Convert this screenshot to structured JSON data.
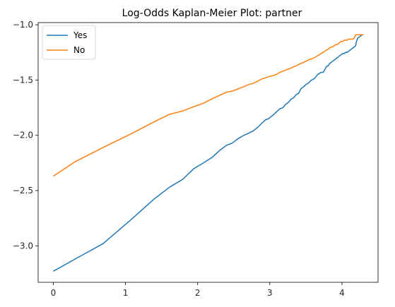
{
  "chart_data": {
    "type": "line",
    "title": "Log-Odds Kaplan-Meier Plot: partner",
    "xlabel": "",
    "ylabel": "",
    "xlim": [
      -0.21,
      4.5
    ],
    "ylim": [
      -3.33,
      -0.98
    ],
    "xticks": [
      0,
      1,
      2,
      3,
      4
    ],
    "yticks": [
      -3.0,
      -2.5,
      -2.0,
      -1.5,
      -1.0
    ],
    "xtick_labels": [
      "0",
      "1",
      "2",
      "3",
      "4"
    ],
    "ytick_labels": [
      "−3.0",
      "−2.5",
      "−2.0",
      "−1.5",
      "−1.0"
    ],
    "grid": false,
    "legend": {
      "placement": "top-left"
    },
    "series": [
      {
        "name": "Yes",
        "color": "#1f77b4",
        "x": [
          0,
          0.3,
          0.69,
          1.1,
          1.39,
          1.61,
          1.79,
          1.95,
          2.08,
          2.2,
          2.3,
          2.4,
          2.48,
          2.56,
          2.64,
          2.71,
          2.77,
          2.83,
          2.89,
          2.94,
          2.98,
          3.04,
          3.09,
          3.14,
          3.18,
          3.22,
          3.26,
          3.3,
          3.33,
          3.37,
          3.4,
          3.43,
          3.47,
          3.5,
          3.53,
          3.56,
          3.58,
          3.61,
          3.64,
          3.66,
          3.69,
          3.71,
          3.74,
          3.76,
          3.78,
          3.81,
          3.83,
          3.85,
          3.87,
          3.89,
          3.91,
          3.93,
          3.95,
          3.97,
          3.99,
          4.01,
          4.03,
          4.05,
          4.07,
          4.09,
          4.11,
          4.13,
          4.15,
          4.17,
          4.19,
          4.2,
          4.22,
          4.24,
          4.26,
          4.28,
          4.3
        ],
        "y": [
          -3.23,
          -3.12,
          -2.98,
          -2.75,
          -2.58,
          -2.47,
          -2.4,
          -2.3,
          -2.25,
          -2.2,
          -2.14,
          -2.09,
          -2.07,
          -2.03,
          -2.0,
          -1.98,
          -1.96,
          -1.93,
          -1.89,
          -1.86,
          -1.85,
          -1.82,
          -1.79,
          -1.76,
          -1.75,
          -1.72,
          -1.7,
          -1.67,
          -1.66,
          -1.63,
          -1.62,
          -1.58,
          -1.56,
          -1.54,
          -1.53,
          -1.51,
          -1.5,
          -1.49,
          -1.47,
          -1.45,
          -1.44,
          -1.43,
          -1.43,
          -1.41,
          -1.38,
          -1.37,
          -1.35,
          -1.34,
          -1.33,
          -1.32,
          -1.31,
          -1.3,
          -1.29,
          -1.28,
          -1.27,
          -1.26,
          -1.26,
          -1.25,
          -1.25,
          -1.24,
          -1.23,
          -1.22,
          -1.21,
          -1.2,
          -1.19,
          -1.15,
          -1.12,
          -1.11,
          -1.1,
          -1.09,
          -1.09
        ]
      },
      {
        "name": "No",
        "color": "#ff7f0e",
        "x": [
          0,
          0.3,
          0.69,
          1.1,
          1.39,
          1.61,
          1.79,
          1.95,
          2.08,
          2.2,
          2.3,
          2.4,
          2.48,
          2.56,
          2.64,
          2.71,
          2.77,
          2.83,
          2.89,
          2.94,
          2.98,
          3.04,
          3.09,
          3.14,
          3.18,
          3.22,
          3.26,
          3.3,
          3.33,
          3.37,
          3.4,
          3.43,
          3.47,
          3.5,
          3.53,
          3.56,
          3.58,
          3.61,
          3.64,
          3.66,
          3.69,
          3.71,
          3.74,
          3.76,
          3.78,
          3.81,
          3.83,
          3.85,
          3.87,
          3.89,
          3.91,
          3.93,
          3.95,
          3.97,
          3.99,
          4.01,
          4.03,
          4.05,
          4.07,
          4.09,
          4.11,
          4.13,
          4.15,
          4.17,
          4.19,
          4.2,
          4.22,
          4.24,
          4.26,
          4.28,
          4.3
        ],
        "y": [
          -2.37,
          -2.24,
          -2.11,
          -1.98,
          -1.88,
          -1.81,
          -1.78,
          -1.74,
          -1.71,
          -1.67,
          -1.64,
          -1.61,
          -1.6,
          -1.58,
          -1.56,
          -1.54,
          -1.53,
          -1.51,
          -1.49,
          -1.48,
          -1.47,
          -1.46,
          -1.45,
          -1.43,
          -1.42,
          -1.41,
          -1.4,
          -1.39,
          -1.38,
          -1.37,
          -1.36,
          -1.35,
          -1.34,
          -1.33,
          -1.32,
          -1.31,
          -1.31,
          -1.3,
          -1.29,
          -1.28,
          -1.27,
          -1.26,
          -1.25,
          -1.24,
          -1.23,
          -1.22,
          -1.21,
          -1.2,
          -1.2,
          -1.19,
          -1.18,
          -1.18,
          -1.17,
          -1.16,
          -1.15,
          -1.15,
          -1.14,
          -1.14,
          -1.14,
          -1.13,
          -1.13,
          -1.13,
          -1.13,
          -1.12,
          -1.09,
          -1.09,
          -1.09,
          -1.09,
          -1.09,
          -1.09,
          -1.09
        ]
      }
    ]
  }
}
